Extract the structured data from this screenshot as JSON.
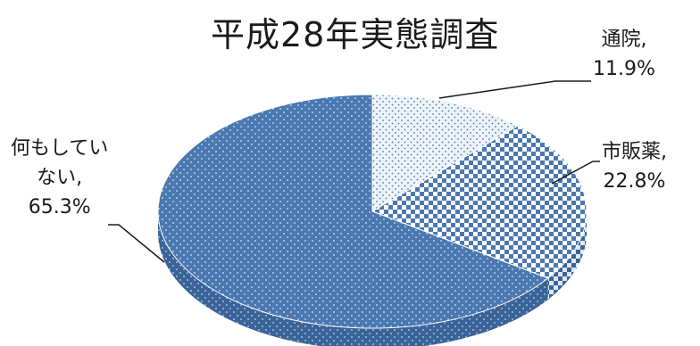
{
  "chart_data": {
    "type": "pie",
    "title": "平成28年実態調査",
    "slices": [
      {
        "name": "通院",
        "value": 11.9,
        "label_lines": [
          "通院,",
          "11.9%"
        ],
        "pattern": "dots-light"
      },
      {
        "name": "市販薬",
        "value": 22.8,
        "label_lines": [
          "市販薬,",
          "22.8%"
        ],
        "pattern": "checker"
      },
      {
        "name": "何もしていない",
        "value": 65.3,
        "label_lines": [
          "何もしてい",
          "ない,",
          "65.3%"
        ],
        "pattern": "dots-dark"
      }
    ],
    "legend": "none",
    "colors": {
      "primary": "#4a78b0",
      "primary_side": "#3a6498",
      "light": "#e4ecf6",
      "checker_dark": "#4a78b0"
    }
  }
}
